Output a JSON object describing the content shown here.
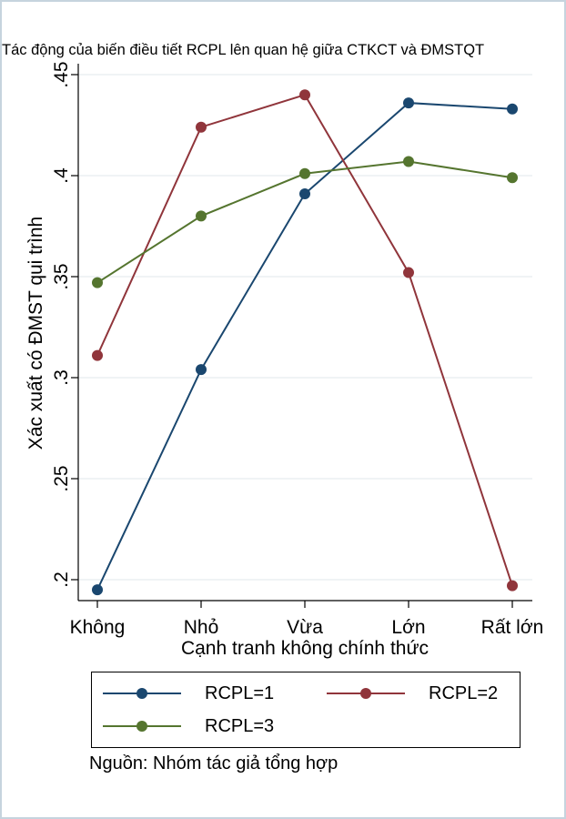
{
  "chart_data": {
    "type": "line",
    "title": "Tác động của biến điều tiết RCPL lên quan hệ giữa CTKCT và ĐMSTQT",
    "xlabel": "Cạnh tranh không chính thức",
    "ylabel": "Xác xuất có ĐMST qui trình",
    "categories": [
      "Không",
      "Nhỏ",
      "Vừa",
      "Lớn",
      "Rất lớn"
    ],
    "ylim": [
      0.195,
      0.45
    ],
    "yticks": [
      {
        "value": 0.2,
        "label": ".2"
      },
      {
        "value": 0.25,
        "label": ".25"
      },
      {
        "value": 0.3,
        "label": ".3"
      },
      {
        "value": 0.35,
        "label": ".35"
      },
      {
        "value": 0.4,
        "label": ".4"
      },
      {
        "value": 0.45,
        "label": ".45"
      }
    ],
    "grid": true,
    "legend_placement": "bottom",
    "series": [
      {
        "name": "RCPL=1",
        "color": "#1a476f",
        "values": [
          0.195,
          0.304,
          0.391,
          0.436,
          0.433
        ]
      },
      {
        "name": "RCPL=2",
        "color": "#90353b",
        "values": [
          0.311,
          0.424,
          0.44,
          0.352,
          0.197
        ]
      },
      {
        "name": "RCPL=3",
        "color": "#55752f",
        "values": [
          0.347,
          0.38,
          0.401,
          0.407,
          0.399
        ]
      }
    ]
  },
  "source_note": "Nguồn: Nhóm tác giả tổng hợp"
}
